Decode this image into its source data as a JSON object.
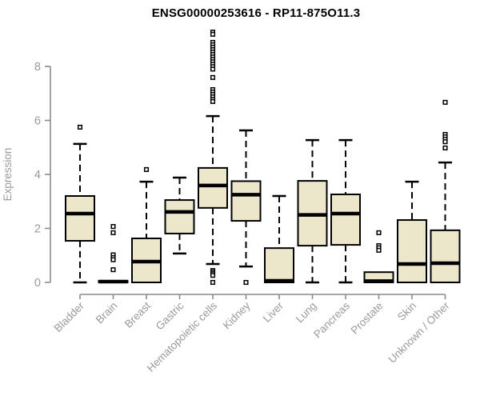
{
  "title": "ENSG00000253616 - RP11-875O11.3",
  "chart_data": {
    "type": "boxplot",
    "title": "ENSG00000253616 - RP11-875O11.3",
    "xlabel": "",
    "ylabel": "Expression",
    "yticks": [
      0,
      2,
      4,
      6,
      8
    ],
    "ylim": [
      0,
      9.4
    ],
    "grid": false,
    "legend": "none",
    "categories": [
      "Bladder",
      "Brain",
      "Breast",
      "Gastric",
      "Hematopoietic cells",
      "Kidney",
      "Liver",
      "Lung",
      "Pancreas",
      "Prostate",
      "Skin",
      "Unknown / Other"
    ],
    "boxes": [
      {
        "category": "Bladder",
        "whisker_low": 0.0,
        "q1": 1.54,
        "median": 2.55,
        "q3": 3.2,
        "whisker_high": 5.13,
        "outliers": [
          5.75
        ]
      },
      {
        "category": "Brain",
        "whisker_low": 0.0,
        "q1": 0.0,
        "median": 0.03,
        "q3": 0.06,
        "whisker_high": 0.07,
        "outliers": [
          2.07,
          1.84,
          1.02,
          0.92,
          0.84,
          0.47
        ]
      },
      {
        "category": "Breast",
        "whisker_low": 0.0,
        "q1": 0.0,
        "median": 0.77,
        "q3": 1.63,
        "whisker_high": 3.73,
        "outliers": [
          4.18
        ]
      },
      {
        "category": "Gastric",
        "whisker_low": 1.07,
        "q1": 1.81,
        "median": 2.61,
        "q3": 3.05,
        "whisker_high": 3.88,
        "outliers": []
      },
      {
        "category": "Hematopoietic cells",
        "whisker_low": 0.68,
        "q1": 2.76,
        "median": 3.59,
        "q3": 4.24,
        "whisker_high": 6.16,
        "outliers": [
          9.27,
          9.19,
          8.89,
          8.8,
          8.71,
          8.62,
          8.53,
          8.44,
          8.35,
          8.26,
          8.17,
          8.08,
          7.99,
          7.9,
          7.59,
          7.14,
          7.05,
          6.96,
          6.87,
          6.78,
          6.7,
          0.44,
          0.38,
          0.32,
          0.26,
          0.0
        ]
      },
      {
        "category": "Kidney",
        "whisker_low": 0.59,
        "q1": 2.28,
        "median": 3.25,
        "q3": 3.75,
        "whisker_high": 5.63,
        "outliers": [
          0.0
        ]
      },
      {
        "category": "Liver",
        "whisker_low": 0.0,
        "q1": 0.0,
        "median": 0.06,
        "q3": 1.27,
        "whisker_high": 3.2,
        "outliers": []
      },
      {
        "category": "Lung",
        "whisker_low": 0.0,
        "q1": 1.36,
        "median": 2.5,
        "q3": 3.76,
        "whisker_high": 5.27,
        "outliers": []
      },
      {
        "category": "Pancreas",
        "whisker_low": 0.0,
        "q1": 1.39,
        "median": 2.55,
        "q3": 3.26,
        "whisker_high": 5.27,
        "outliers": []
      },
      {
        "category": "Prostate",
        "whisker_low": 0.0,
        "q1": 0.0,
        "median": 0.05,
        "q3": 0.38,
        "whisker_high": 0.39,
        "outliers": [
          1.84,
          1.36,
          1.28,
          1.19
        ]
      },
      {
        "category": "Skin",
        "whisker_low": 0.0,
        "q1": 0.0,
        "median": 0.68,
        "q3": 2.31,
        "whisker_high": 3.73,
        "outliers": []
      },
      {
        "category": "Unknown / Other",
        "whisker_low": 0.0,
        "q1": 0.0,
        "median": 0.71,
        "q3": 1.93,
        "whisker_high": 4.44,
        "outliers": [
          6.67,
          5.48,
          5.39,
          5.3,
          5.21,
          4.98
        ]
      }
    ],
    "colors": {
      "box_fill": "#ECE6CB",
      "box_stroke": "#000000",
      "median": "#000000",
      "whisker": "#000000",
      "axis": "#8A8A8A",
      "tick_text": "#9A9A9A",
      "title_text": "#000000",
      "background": "#FFFFFF"
    }
  }
}
